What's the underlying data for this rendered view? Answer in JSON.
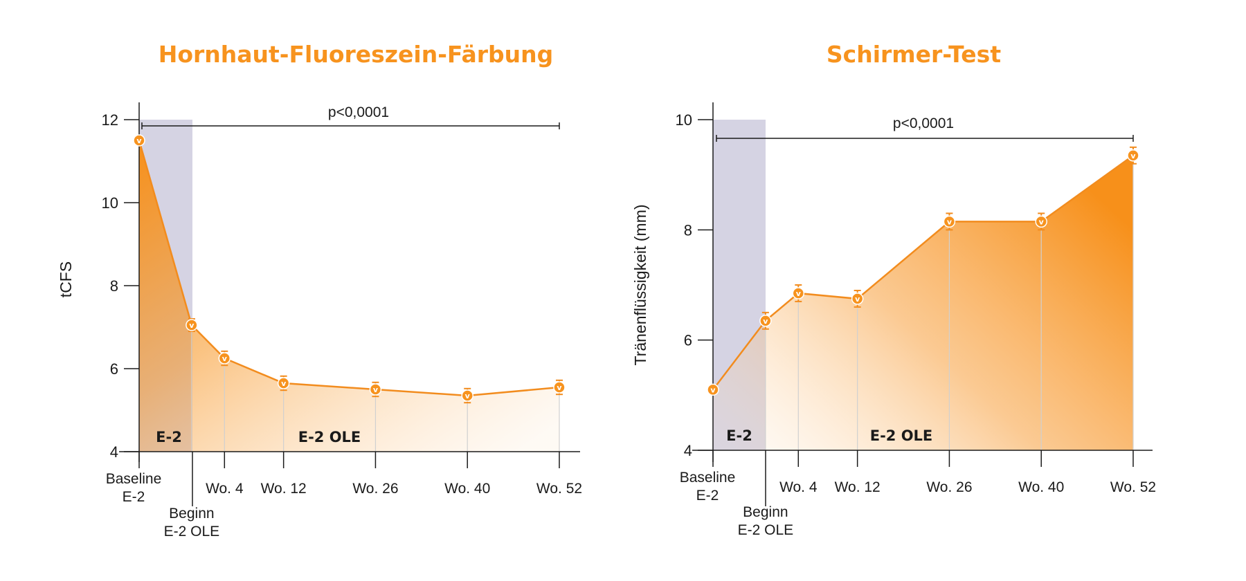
{
  "colors": {
    "accent": "#f7931e",
    "line": "#f28c1e",
    "shade": "#d5d3e3",
    "axis": "#1a1a1a"
  },
  "marker_glyph": "v",
  "chart_data": [
    {
      "type": "area",
      "title": "Hornhaut-Fluoreszein-Färbung",
      "ylabel": "tCFS",
      "xlabel": "",
      "ylim": [
        4,
        12
      ],
      "yticks": [
        "4",
        "6",
        "8",
        "10",
        "12"
      ],
      "categories": [
        "Baseline E-2",
        "Beginn E-2 OLE",
        "Wo. 4",
        "Wo. 12",
        "Wo. 26",
        "Wo. 40",
        "Wo. 52"
      ],
      "category_labels": [
        [
          "Baseline",
          "E-2"
        ],
        [
          "Beginn",
          "E-2 OLE"
        ],
        [
          "Wo. 4"
        ],
        [
          "Wo. 12"
        ],
        [
          "Wo. 26"
        ],
        [
          "Wo. 40"
        ],
        [
          "Wo. 52"
        ]
      ],
      "x": [
        0,
        8,
        13,
        22,
        36,
        50,
        64
      ],
      "values": [
        11.5,
        7.05,
        6.25,
        5.65,
        5.5,
        5.35,
        5.55
      ],
      "errors": [
        0,
        0.15,
        0.17,
        0.17,
        0.17,
        0.17,
        0.17
      ],
      "shaded_phase": {
        "label": "E-2",
        "ymax": 12
      },
      "extension_label": "E-2 OLE",
      "significance": {
        "label": "p<0,0001",
        "y": 11.85,
        "from": 0,
        "to": 64
      }
    },
    {
      "type": "area",
      "title": "Schirmer-Test",
      "ylabel": "Tränenflüssigkeit (mm)",
      "xlabel": "",
      "ylim": [
        4,
        10
      ],
      "yticks": [
        "4",
        "6",
        "8",
        "10"
      ],
      "categories": [
        "Baseline E-2",
        "Beginn E-2 OLE",
        "Wo. 4",
        "Wo. 12",
        "Wo. 26",
        "Wo. 40",
        "Wo. 52"
      ],
      "category_labels": [
        [
          "Baseline",
          "E-2"
        ],
        [
          "Beginn",
          "E-2 OLE"
        ],
        [
          "Wo. 4"
        ],
        [
          "Wo. 12"
        ],
        [
          "Wo. 26"
        ],
        [
          "Wo. 40"
        ],
        [
          "Wo. 52"
        ]
      ],
      "x": [
        0,
        8,
        13,
        22,
        36,
        50,
        64
      ],
      "values": [
        5.1,
        6.35,
        6.85,
        6.75,
        8.15,
        8.15,
        9.35
      ],
      "errors": [
        0,
        0.15,
        0.15,
        0.15,
        0.15,
        0.15,
        0.15
      ],
      "shaded_phase": {
        "label": "E-2",
        "ymax": 10
      },
      "extension_label": "E-2 OLE",
      "significance": {
        "label": "p<0,0001",
        "y": 9.65,
        "from": 0,
        "to": 64
      }
    }
  ]
}
